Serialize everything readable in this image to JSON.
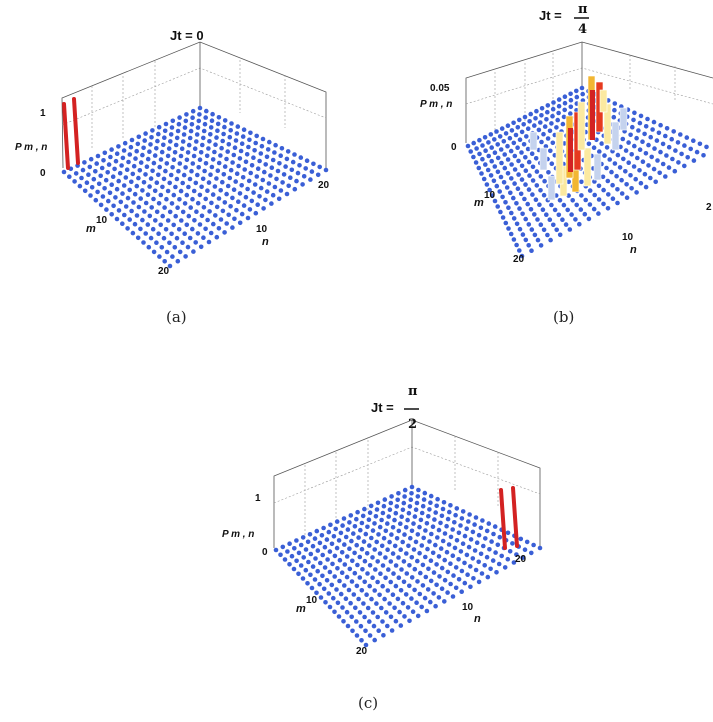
{
  "panels": [
    {
      "id": "a",
      "caption": "(a)",
      "title_prefix": "Jt = 0",
      "title_fraction": null,
      "z_ticks": [
        "0",
        "1"
      ],
      "z_label": "P m , n",
      "m_label": "m",
      "n_label": "n",
      "m_ticks": [
        "10",
        "20"
      ],
      "n_ticks": [
        "10",
        "20"
      ]
    },
    {
      "id": "b",
      "caption": "(b)",
      "title_prefix": "Jt =",
      "title_fraction": {
        "num": "π",
        "den": "4"
      },
      "z_ticks": [
        "0",
        "0.05"
      ],
      "z_label": "P m , n",
      "m_label": "m",
      "n_label": "n",
      "m_ticks": [
        "10",
        "20"
      ],
      "n_ticks": [
        "10",
        "2"
      ]
    },
    {
      "id": "c",
      "caption": "(c)",
      "title_prefix": "Jt =",
      "title_fraction": {
        "num": "π",
        "den": "2"
      },
      "z_ticks": [
        "0",
        "1"
      ],
      "z_label": "P m , n",
      "m_label": "m",
      "n_label": "n",
      "m_ticks": [
        "10",
        "20"
      ],
      "n_ticks": [
        "10",
        "20"
      ]
    }
  ],
  "colors": {
    "dot": "#3a5fd6",
    "spike": "#d32222",
    "peak_high": "#e63a1f",
    "peak_mid": "#f2b632",
    "peak_low": "#fbe9a0",
    "peak_cool": "#c5d3ee"
  }
}
